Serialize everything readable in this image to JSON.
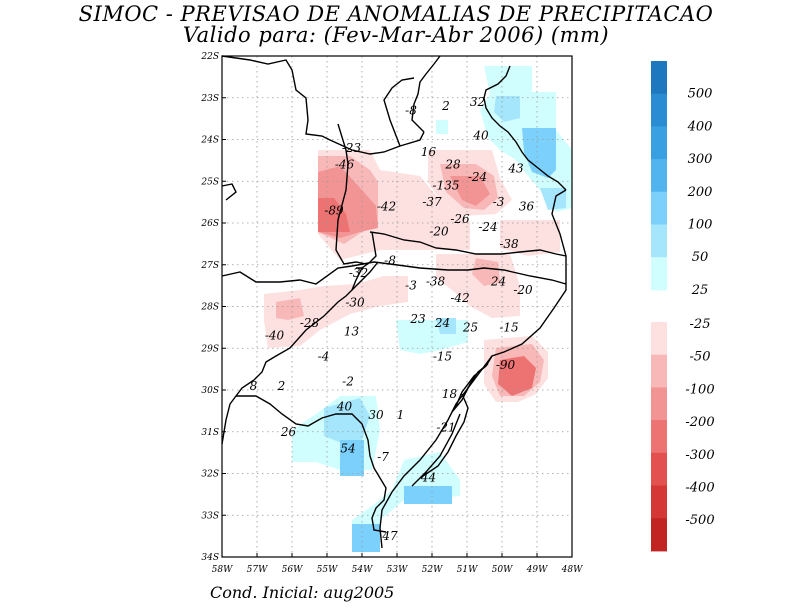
{
  "title": "SIMOC - PREVISAO DE ANOMALIAS DE PRECIPITACAO",
  "subtitle": "Valido para: (Fev-Mar-Abr 2006) (mm)",
  "footer": "Cond. Inicial: aug2005",
  "map": {
    "lon_range": [
      -58,
      -48
    ],
    "lat_range": [
      -34,
      -22
    ],
    "lon_ticks": [
      {
        "v": -58,
        "label": "58W"
      },
      {
        "v": -57,
        "label": "57W"
      },
      {
        "v": -56,
        "label": "56W"
      },
      {
        "v": -55,
        "label": "55W"
      },
      {
        "v": -54,
        "label": "54W"
      },
      {
        "v": -53,
        "label": "53W"
      },
      {
        "v": -52,
        "label": "52W"
      },
      {
        "v": -51,
        "label": "51W"
      },
      {
        "v": -50,
        "label": "50W"
      },
      {
        "v": -49,
        "label": "49W"
      },
      {
        "v": -48,
        "label": "48W"
      }
    ],
    "lat_ticks": [
      {
        "v": -22,
        "label": "22S"
      },
      {
        "v": -23,
        "label": "23S"
      },
      {
        "v": -24,
        "label": "24S"
      },
      {
        "v": -25,
        "label": "25S"
      },
      {
        "v": -26,
        "label": "26S"
      },
      {
        "v": -27,
        "label": "27S"
      },
      {
        "v": -28,
        "label": "28S"
      },
      {
        "v": -29,
        "label": "29S"
      },
      {
        "v": -30,
        "label": "30S"
      },
      {
        "v": -31,
        "label": "31S"
      },
      {
        "v": -32,
        "label": "32S"
      },
      {
        "v": -33,
        "label": "33S"
      },
      {
        "v": -34,
        "label": "34S"
      }
    ],
    "grid": true,
    "values": [
      {
        "lon": -52.6,
        "lat": -23.3,
        "text": "-8"
      },
      {
        "lon": -51.6,
        "lat": -23.2,
        "text": "2"
      },
      {
        "lon": -50.7,
        "lat": -23.1,
        "text": "32"
      },
      {
        "lon": -50.6,
        "lat": -23.9,
        "text": "40"
      },
      {
        "lon": -54.3,
        "lat": -24.2,
        "text": "-23"
      },
      {
        "lon": -52.1,
        "lat": -24.3,
        "text": "16"
      },
      {
        "lon": -54.5,
        "lat": -24.6,
        "text": "-46"
      },
      {
        "lon": -51.4,
        "lat": -24.6,
        "text": "28"
      },
      {
        "lon": -49.6,
        "lat": -24.7,
        "text": "43"
      },
      {
        "lon": -50.7,
        "lat": -24.9,
        "text": "-24"
      },
      {
        "lon": -51.6,
        "lat": -25.1,
        "text": "-135"
      },
      {
        "lon": -52.0,
        "lat": -25.5,
        "text": "-37"
      },
      {
        "lon": -50.1,
        "lat": -25.5,
        "text": "-3"
      },
      {
        "lon": -49.3,
        "lat": -25.6,
        "text": "36"
      },
      {
        "lon": -54.8,
        "lat": -25.7,
        "text": "-89"
      },
      {
        "lon": -53.3,
        "lat": -25.6,
        "text": "-42"
      },
      {
        "lon": -51.2,
        "lat": -25.9,
        "text": "-26"
      },
      {
        "lon": -50.4,
        "lat": -26.1,
        "text": "-24"
      },
      {
        "lon": -51.8,
        "lat": -26.2,
        "text": "-20"
      },
      {
        "lon": -49.8,
        "lat": -26.5,
        "text": "-38"
      },
      {
        "lon": -53.2,
        "lat": -26.9,
        "text": "-8"
      },
      {
        "lon": -54.1,
        "lat": -27.2,
        "text": "-32"
      },
      {
        "lon": -52.6,
        "lat": -27.5,
        "text": "-3"
      },
      {
        "lon": -51.9,
        "lat": -27.4,
        "text": "-38"
      },
      {
        "lon": -50.1,
        "lat": -27.4,
        "text": "24"
      },
      {
        "lon": -49.4,
        "lat": -27.6,
        "text": "-20"
      },
      {
        "lon": -51.2,
        "lat": -27.8,
        "text": "-42"
      },
      {
        "lon": -54.2,
        "lat": -27.9,
        "text": "-30"
      },
      {
        "lon": -52.4,
        "lat": -28.3,
        "text": "23"
      },
      {
        "lon": -51.7,
        "lat": -28.4,
        "text": "24"
      },
      {
        "lon": -50.9,
        "lat": -28.5,
        "text": "25"
      },
      {
        "lon": -49.8,
        "lat": -28.5,
        "text": "-15"
      },
      {
        "lon": -55.5,
        "lat": -28.4,
        "text": "-28"
      },
      {
        "lon": -54.3,
        "lat": -28.6,
        "text": "13"
      },
      {
        "lon": -56.5,
        "lat": -28.7,
        "text": "-40"
      },
      {
        "lon": -55.1,
        "lat": -29.2,
        "text": "-4"
      },
      {
        "lon": -51.7,
        "lat": -29.2,
        "text": "-15"
      },
      {
        "lon": -49.9,
        "lat": -29.4,
        "text": "-90"
      },
      {
        "lon": -57.1,
        "lat": -29.9,
        "text": "8"
      },
      {
        "lon": -56.3,
        "lat": -29.9,
        "text": "2"
      },
      {
        "lon": -54.4,
        "lat": -29.8,
        "text": "-2"
      },
      {
        "lon": -51.5,
        "lat": -30.1,
        "text": "18"
      },
      {
        "lon": -54.5,
        "lat": -30.4,
        "text": "40"
      },
      {
        "lon": -53.6,
        "lat": -30.6,
        "text": "30"
      },
      {
        "lon": -52.9,
        "lat": -30.6,
        "text": "1"
      },
      {
        "lon": -51.6,
        "lat": -30.9,
        "text": "-21"
      },
      {
        "lon": -56.1,
        "lat": -31.0,
        "text": "26"
      },
      {
        "lon": -54.4,
        "lat": -31.4,
        "text": "54"
      },
      {
        "lon": -53.4,
        "lat": -31.6,
        "text": "-7"
      },
      {
        "lon": -52.1,
        "lat": -32.1,
        "text": "44"
      },
      {
        "lon": -53.2,
        "lat": -33.5,
        "text": "47"
      }
    ]
  },
  "legend": {
    "positive": [
      {
        "label": "500",
        "color": "#1e78c0"
      },
      {
        "label": "400",
        "color": "#2a8cd2"
      },
      {
        "label": "300",
        "color": "#39a0e2"
      },
      {
        "label": "200",
        "color": "#52b4ee"
      },
      {
        "label": "100",
        "color": "#7cd0fc"
      },
      {
        "label": "50",
        "color": "#a6e6fc"
      },
      {
        "label": "25",
        "color": "#d0fefe"
      }
    ],
    "negative": [
      {
        "label": "-25",
        "color": "#fde0e0"
      },
      {
        "label": "-50",
        "color": "#f8b8b8"
      },
      {
        "label": "-100",
        "color": "#f39494"
      },
      {
        "label": "-200",
        "color": "#ed7272"
      },
      {
        "label": "-300",
        "color": "#e25050"
      },
      {
        "label": "-400",
        "color": "#d53636"
      },
      {
        "label": "-500",
        "color": "#c22424"
      }
    ]
  }
}
